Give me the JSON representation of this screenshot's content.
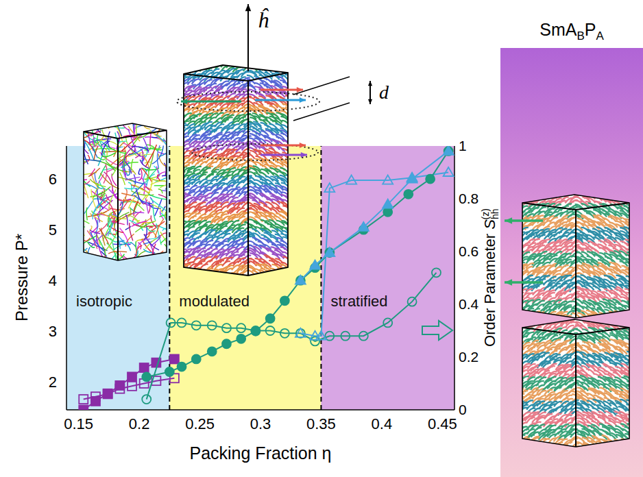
{
  "chart_data": {
    "type": "scatter",
    "xlabel": "Packing Fraction η",
    "ylabel": "Pressure P*",
    "y2label": "Order Parameter",
    "y2label_symbol": {
      "base": "S",
      "sub": "hh",
      "sup": "(z)"
    },
    "xlim": [
      0.14,
      0.46
    ],
    "xticks": [
      0.15,
      0.2,
      0.25,
      0.3,
      0.35,
      0.4,
      0.45
    ],
    "ylim": [
      1.45,
      6.65
    ],
    "yticks": [
      2,
      3,
      4,
      5,
      6
    ],
    "y2lim": [
      0,
      1
    ],
    "y2ticks": [
      0,
      0.2,
      0.4,
      0.6,
      0.8,
      1
    ],
    "grid": false,
    "regions": [
      {
        "label": "isotropic",
        "x1": 0.14,
        "x2": 0.225,
        "color": "#c7e7f7"
      },
      {
        "label": "modulated",
        "x1": 0.225,
        "x2": 0.35,
        "color": "#fdfa9e"
      },
      {
        "label": "stratified",
        "x1": 0.35,
        "x2": 0.46,
        "color": "#d8a6e4"
      }
    ],
    "series": [
      {
        "color": "#8a2ca6",
        "marker": "open_square",
        "axis": "y2",
        "x": [
          0.154,
          0.164,
          0.174,
          0.184,
          0.194,
          0.204,
          0.214,
          0.229
        ],
        "values": [
          0.04,
          0.05,
          0.06,
          0.08,
          0.09,
          0.1,
          0.11,
          0.12
        ]
      },
      {
        "color": "#8a2ca6",
        "marker": "square",
        "axis": "y",
        "x": [
          0.154,
          0.164,
          0.174,
          0.184,
          0.194,
          0.204,
          0.214,
          0.229
        ],
        "values": [
          1.45,
          1.62,
          1.77,
          1.93,
          2.1,
          2.28,
          2.38,
          2.45
        ]
      },
      {
        "color": "#1e9b80",
        "marker": "open_circle",
        "axis": "y2",
        "x": [
          0.206,
          0.226,
          0.235,
          0.247,
          0.26,
          0.272,
          0.284,
          0.296,
          0.308,
          0.32,
          0.333,
          0.345,
          0.357,
          0.37,
          0.385,
          0.405,
          0.425,
          0.445
        ],
        "values": [
          0.04,
          0.33,
          0.33,
          0.32,
          0.32,
          0.31,
          0.31,
          0.3,
          0.3,
          0.29,
          0.29,
          0.26,
          0.28,
          0.28,
          0.28,
          0.33,
          0.41,
          0.52
        ]
      },
      {
        "color": "#45a5dc",
        "marker": "open_triangle",
        "axis": "y2",
        "x": [
          0.333,
          0.345,
          0.35,
          0.357,
          0.375,
          0.405,
          0.425,
          0.455
        ],
        "values": [
          0.29,
          0.28,
          0.28,
          0.84,
          0.87,
          0.87,
          0.88,
          0.9
        ]
      },
      {
        "color": "#1e9b80",
        "marker": "circle",
        "axis": "y",
        "x": [
          0.206,
          0.225,
          0.235,
          0.247,
          0.26,
          0.272,
          0.284,
          0.296,
          0.308,
          0.32,
          0.333,
          0.345,
          0.357,
          0.385,
          0.405,
          0.422,
          0.44,
          0.455
        ],
        "values": [
          2.1,
          2.2,
          2.3,
          2.45,
          2.6,
          2.75,
          2.85,
          3.0,
          3.25,
          3.6,
          4.0,
          4.25,
          4.55,
          5.0,
          5.35,
          5.7,
          6.0,
          6.55
        ]
      },
      {
        "color": "#45a5dc",
        "marker": "triangle",
        "axis": "y",
        "x": [
          0.333,
          0.345,
          0.357,
          0.385,
          0.405,
          0.425,
          0.455
        ],
        "values": [
          4.0,
          4.3,
          4.55,
          5.05,
          5.5,
          6.0,
          6.55
        ]
      }
    ],
    "annotations": {
      "director": "ĥ",
      "spacing": "d",
      "panel_title": [
        "SmA",
        "B",
        "P",
        "A"
      ]
    }
  }
}
